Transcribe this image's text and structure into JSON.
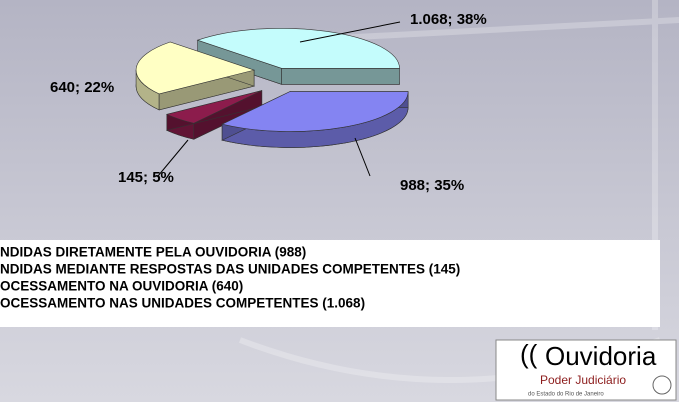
{
  "chart_data": {
    "type": "pie",
    "categories": [
      "NDIDAS DIRETAMENTE PELA OUVIDORIA (988)",
      "NDIDAS MEDIANTE RESPOSTAS DAS UNIDADES COMPETENTES (145)",
      "OCESSAMENTO NA OUVIDORIA (640)",
      "OCESSAMENTO NAS UNIDADES COMPETENTES (1.068)"
    ],
    "values": [
      988,
      145,
      640,
      1068
    ],
    "value_labels": [
      "988; 35%",
      "145; 5%",
      "640; 22%",
      "1.068; 38%"
    ],
    "colors": [
      "#8484f2",
      "#8c1c4c",
      "#ffffc4",
      "#c4fcfc"
    ]
  },
  "logo": {
    "name": "Ouvidoria",
    "org": "Poder Judiciário",
    "sub": "do Estado do Rio de Janeiro"
  }
}
